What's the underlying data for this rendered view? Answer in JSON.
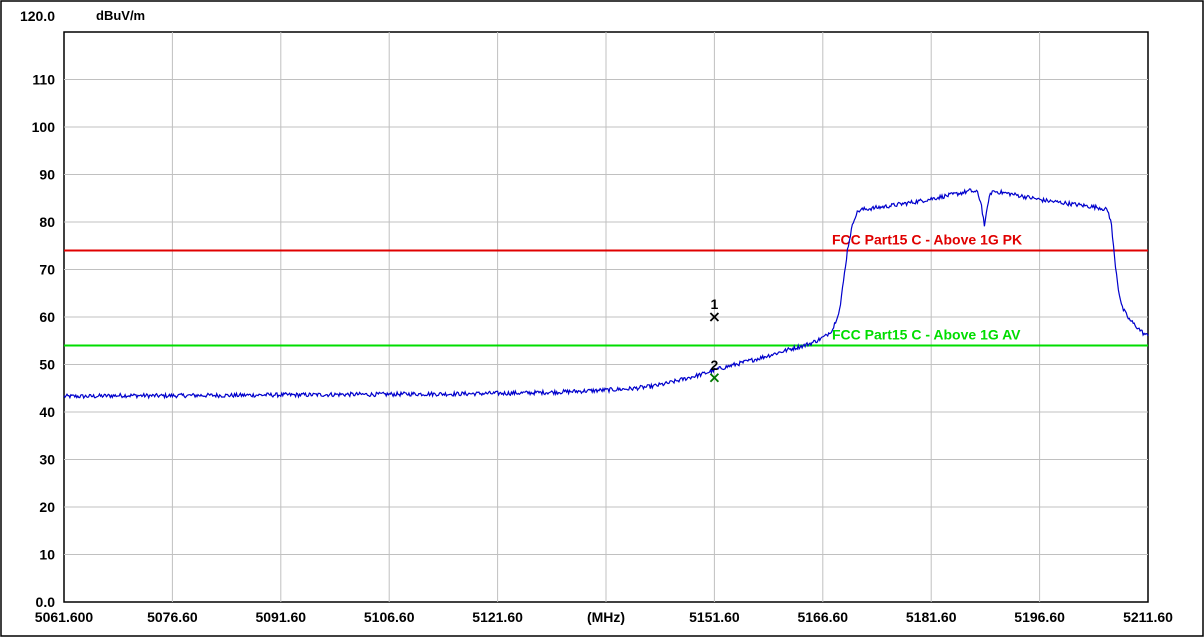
{
  "chart_data": {
    "type": "line",
    "ylabel": "dBuV/m",
    "xlabel": "(MHz)",
    "xlim": [
      5061.6,
      5211.6
    ],
    "ylim": [
      0,
      120
    ],
    "grid": true,
    "y_ticks": [
      {
        "value": 120,
        "label": "120.0"
      },
      {
        "value": 110,
        "label": "110"
      },
      {
        "value": 100,
        "label": "100"
      },
      {
        "value": 90,
        "label": "90"
      },
      {
        "value": 80,
        "label": "80"
      },
      {
        "value": 70,
        "label": "70"
      },
      {
        "value": 60,
        "label": "60"
      },
      {
        "value": 50,
        "label": "50"
      },
      {
        "value": 40,
        "label": "40"
      },
      {
        "value": 30,
        "label": "30"
      },
      {
        "value": 20,
        "label": "20"
      },
      {
        "value": 10,
        "label": "10"
      },
      {
        "value": 0,
        "label": "0.0"
      }
    ],
    "x_ticks": [
      {
        "value": 5061.6,
        "label": "5061.600"
      },
      {
        "value": 5076.6,
        "label": "5076.60"
      },
      {
        "value": 5091.6,
        "label": "5091.60"
      },
      {
        "value": 5106.6,
        "label": "5106.60"
      },
      {
        "value": 5121.6,
        "label": "5121.60"
      },
      {
        "value": 5136.6,
        "label": "(MHz)"
      },
      {
        "value": 5151.6,
        "label": "5151.60"
      },
      {
        "value": 5166.6,
        "label": "5166.60"
      },
      {
        "value": 5181.6,
        "label": "5181.60"
      },
      {
        "value": 5196.6,
        "label": "5196.60"
      },
      {
        "value": 5211.6,
        "label": "5211.60"
      }
    ],
    "limit_lines": [
      {
        "label": "FCC Part15 C - Above 1G PK",
        "y": 74,
        "color": "#e00000"
      },
      {
        "label": "FCC Part15 C - Above 1G AV",
        "y": 54,
        "color": "#00dd00"
      }
    ],
    "series": [
      {
        "color": "#0000cc",
        "x": [
          5061.6,
          5065,
          5070,
          5075,
          5080,
          5085,
          5090,
          5095,
          5100,
          5105,
          5110,
          5115,
          5120,
          5125,
          5130,
          5135,
          5140,
          5143,
          5145,
          5147,
          5149,
          5150,
          5151,
          5152,
          5154,
          5156,
          5158,
          5160,
          5162,
          5164,
          5165,
          5166,
          5167,
          5168,
          5169,
          5170,
          5170.5,
          5171,
          5171.5,
          5172,
          5173,
          5175,
          5178,
          5180,
          5182,
          5184,
          5186,
          5187,
          5188,
          5188.5,
          5189,
          5189.5,
          5190,
          5191,
          5193,
          5195,
          5197,
          5200,
          5203,
          5205,
          5206,
          5206.5,
          5207,
          5207.5,
          5208,
          5209,
          5210,
          5211,
          5211.6
        ],
        "y": [
          43.3,
          43.3,
          43.5,
          43.4,
          43.5,
          43.5,
          43.6,
          43.6,
          43.7,
          43.7,
          43.8,
          43.8,
          43.9,
          44.0,
          44.2,
          44.5,
          44.9,
          45.4,
          46.0,
          46.8,
          47.6,
          48.0,
          48.5,
          49.0,
          49.8,
          50.6,
          51.4,
          52.3,
          53.2,
          54.0,
          54.5,
          55.2,
          56.0,
          57.5,
          62.0,
          74.0,
          78.0,
          81.0,
          82.3,
          82.6,
          82.8,
          83.2,
          83.9,
          84.4,
          85.0,
          85.6,
          86.2,
          86.6,
          86.2,
          84.0,
          79.0,
          84.5,
          86.5,
          86.3,
          85.8,
          85.2,
          84.6,
          84.0,
          83.4,
          83.0,
          82.5,
          80.0,
          72.0,
          66.0,
          62.0,
          59.5,
          58.0,
          56.5,
          56.0
        ]
      }
    ],
    "markers": [
      {
        "label": "1",
        "x": 5151.6,
        "y": 60.0,
        "color": "#000000"
      },
      {
        "label": "2",
        "x": 5151.6,
        "y": 47.2,
        "color": "#007700"
      }
    ]
  }
}
